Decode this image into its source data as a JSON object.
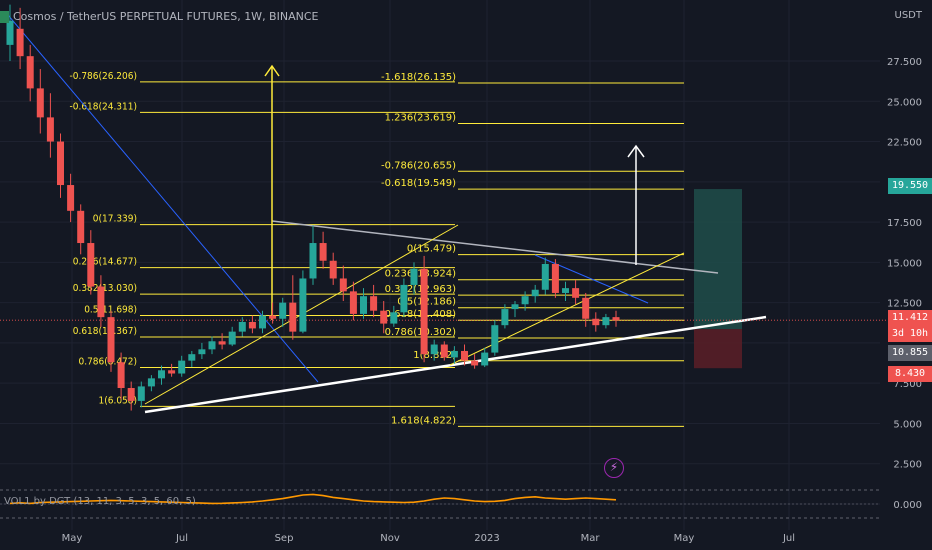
{
  "header": {
    "title": "Cosmos / TetherUS PERPETUAL FUTURES, 1W, BINANCE",
    "currency": "USDT"
  },
  "indicator": {
    "label": "VOL1 by DGT (13, 11, 3, 5, 3, 5, 60, 5)"
  },
  "colors": {
    "background": "#141823",
    "up_candle": "#26a69a",
    "down_candle": "#ef5350",
    "fib_line": "#ffeb3b",
    "trend_white": "#ffffff",
    "trend_blue": "#2962ff",
    "target_zone": "#1e4d4a",
    "stop_zone": "#5a1f27"
  },
  "price_axis": {
    "ticks": [
      "27.500",
      "25.000",
      "22.500",
      "17.500",
      "15.000",
      "12.500",
      "7.500",
      "5.000",
      "2.500",
      "0.000"
    ]
  },
  "badges": {
    "tp": "19.550",
    "last": "11.412",
    "countdown": "3d 10h",
    "entry": "10.855",
    "sl": "8.430"
  },
  "time_axis": {
    "labels": [
      "May",
      "Jul",
      "Sep",
      "Nov",
      "2023",
      "Mar",
      "May",
      "Jul"
    ]
  },
  "fib_left": [
    "-0.786(26.206)",
    "-0.618(24.311)",
    "0(17.339)",
    "0.236(14.677)",
    "0.382(13.030)",
    "0.5(11.698)",
    "0.618(10.367)",
    "0.786(8.472)",
    "1(6.058)"
  ],
  "fib_right": [
    "-1.618(26.135)",
    "1.236(23.619)",
    "-0.786(20.655)",
    "-0.618(19.549)",
    "0(15.479)",
    "0.236(13.924)",
    "0.382(12.963)",
    "0.5(12.186)",
    "0.618(11.408)",
    "0.786(10.302)",
    "1(8.892)",
    "1.618(4.822)"
  ],
  "chart_data": {
    "type": "candlestick",
    "symbol": "Cosmos / TetherUS PERPETUAL FUTURES",
    "interval": "1W",
    "exchange": "BINANCE",
    "ylim": [
      0,
      30
    ],
    "last_price": 11.412,
    "candles": [
      {
        "o": 28.5,
        "h": 31.0,
        "l": 27.5,
        "c": 30.0
      },
      {
        "o": 29.5,
        "h": 30.8,
        "l": 27.0,
        "c": 27.8
      },
      {
        "o": 27.8,
        "h": 28.5,
        "l": 25.0,
        "c": 25.8
      },
      {
        "o": 25.8,
        "h": 27.0,
        "l": 23.0,
        "c": 24.0
      },
      {
        "o": 24.0,
        "h": 25.5,
        "l": 21.5,
        "c": 22.5
      },
      {
        "o": 22.5,
        "h": 23.0,
        "l": 19.0,
        "c": 19.8
      },
      {
        "o": 19.8,
        "h": 20.5,
        "l": 17.5,
        "c": 18.2
      },
      {
        "o": 18.2,
        "h": 18.6,
        "l": 15.5,
        "c": 16.2
      },
      {
        "o": 16.2,
        "h": 17.0,
        "l": 13.0,
        "c": 13.5
      },
      {
        "o": 13.5,
        "h": 14.2,
        "l": 11.0,
        "c": 11.6
      },
      {
        "o": 11.6,
        "h": 12.0,
        "l": 8.2,
        "c": 8.8
      },
      {
        "o": 8.8,
        "h": 9.4,
        "l": 6.5,
        "c": 7.2
      },
      {
        "o": 7.2,
        "h": 7.6,
        "l": 5.8,
        "c": 6.4
      },
      {
        "o": 6.4,
        "h": 7.6,
        "l": 6.0,
        "c": 7.3
      },
      {
        "o": 7.3,
        "h": 8.0,
        "l": 7.0,
        "c": 7.8
      },
      {
        "o": 7.8,
        "h": 8.6,
        "l": 7.4,
        "c": 8.3
      },
      {
        "o": 8.3,
        "h": 8.7,
        "l": 7.9,
        "c": 8.1
      },
      {
        "o": 8.1,
        "h": 9.2,
        "l": 7.9,
        "c": 8.9
      },
      {
        "o": 8.9,
        "h": 9.5,
        "l": 8.5,
        "c": 9.3
      },
      {
        "o": 9.3,
        "h": 10.0,
        "l": 9.0,
        "c": 9.6
      },
      {
        "o": 9.6,
        "h": 10.4,
        "l": 9.3,
        "c": 10.1
      },
      {
        "o": 10.1,
        "h": 10.6,
        "l": 9.6,
        "c": 9.9
      },
      {
        "o": 9.9,
        "h": 11.0,
        "l": 9.8,
        "c": 10.7
      },
      {
        "o": 10.7,
        "h": 11.6,
        "l": 10.4,
        "c": 11.3
      },
      {
        "o": 11.3,
        "h": 11.7,
        "l": 10.6,
        "c": 10.9
      },
      {
        "o": 10.9,
        "h": 12.0,
        "l": 10.6,
        "c": 11.7
      },
      {
        "o": 11.7,
        "h": 12.5,
        "l": 11.2,
        "c": 11.5
      },
      {
        "o": 11.5,
        "h": 12.8,
        "l": 11.0,
        "c": 12.5
      },
      {
        "o": 12.5,
        "h": 14.2,
        "l": 10.2,
        "c": 10.7
      },
      {
        "o": 10.7,
        "h": 14.5,
        "l": 10.6,
        "c": 14.0
      },
      {
        "o": 14.0,
        "h": 17.3,
        "l": 13.6,
        "c": 16.2
      },
      {
        "o": 16.2,
        "h": 16.9,
        "l": 14.6,
        "c": 15.1
      },
      {
        "o": 15.1,
        "h": 15.6,
        "l": 13.6,
        "c": 14.0
      },
      {
        "o": 14.0,
        "h": 14.8,
        "l": 12.6,
        "c": 13.2
      },
      {
        "o": 13.2,
        "h": 13.8,
        "l": 11.4,
        "c": 11.8
      },
      {
        "o": 11.8,
        "h": 13.4,
        "l": 11.5,
        "c": 12.9
      },
      {
        "o": 12.9,
        "h": 13.6,
        "l": 11.6,
        "c": 12.0
      },
      {
        "o": 12.0,
        "h": 12.6,
        "l": 10.6,
        "c": 11.2
      },
      {
        "o": 11.2,
        "h": 12.3,
        "l": 11.0,
        "c": 11.9
      },
      {
        "o": 11.9,
        "h": 14.0,
        "l": 11.6,
        "c": 13.6
      },
      {
        "o": 13.6,
        "h": 15.0,
        "l": 13.0,
        "c": 14.6
      },
      {
        "o": 14.6,
        "h": 15.4,
        "l": 8.8,
        "c": 9.3
      },
      {
        "o": 9.3,
        "h": 10.2,
        "l": 8.9,
        "c": 9.9
      },
      {
        "o": 9.9,
        "h": 10.1,
        "l": 8.9,
        "c": 9.1
      },
      {
        "o": 9.1,
        "h": 9.8,
        "l": 8.7,
        "c": 9.5
      },
      {
        "o": 9.5,
        "h": 9.9,
        "l": 8.6,
        "c": 8.9
      },
      {
        "o": 8.9,
        "h": 9.3,
        "l": 8.4,
        "c": 8.6
      },
      {
        "o": 8.6,
        "h": 9.7,
        "l": 8.5,
        "c": 9.4
      },
      {
        "o": 9.4,
        "h": 11.4,
        "l": 9.2,
        "c": 11.1
      },
      {
        "o": 11.1,
        "h": 12.4,
        "l": 10.9,
        "c": 12.1
      },
      {
        "o": 12.1,
        "h": 12.6,
        "l": 11.6,
        "c": 12.4
      },
      {
        "o": 12.4,
        "h": 13.2,
        "l": 12.0,
        "c": 12.9
      },
      {
        "o": 12.9,
        "h": 13.6,
        "l": 12.5,
        "c": 13.3
      },
      {
        "o": 13.3,
        "h": 15.3,
        "l": 13.0,
        "c": 14.9
      },
      {
        "o": 14.9,
        "h": 15.2,
        "l": 12.8,
        "c": 13.1
      },
      {
        "o": 13.1,
        "h": 13.8,
        "l": 12.6,
        "c": 13.4
      },
      {
        "o": 13.4,
        "h": 13.9,
        "l": 12.4,
        "c": 12.8
      },
      {
        "o": 12.8,
        "h": 13.1,
        "l": 11.0,
        "c": 11.5
      },
      {
        "o": 11.5,
        "h": 11.9,
        "l": 10.7,
        "c": 11.1
      },
      {
        "o": 11.1,
        "h": 11.8,
        "l": 10.9,
        "c": 11.6
      },
      {
        "o": 11.6,
        "h": 12.0,
        "l": 11.0,
        "c": 11.4
      }
    ],
    "fib_levels_left": [
      26.206,
      24.311,
      17.339,
      14.677,
      13.03,
      11.698,
      10.367,
      8.472,
      6.058
    ],
    "fib_levels_right": [
      26.135,
      23.619,
      20.655,
      19.549,
      15.479,
      13.924,
      12.963,
      12.186,
      11.408,
      10.302,
      8.892,
      4.822
    ],
    "position": {
      "entry": 10.855,
      "take_profit": 19.55,
      "stop_loss": 8.43
    },
    "volume_oscillator": [
      0.1,
      0.2,
      0.1,
      0.25,
      0.3,
      0.35,
      0.4,
      0.45,
      0.5,
      0.55,
      0.6,
      0.55,
      0.5,
      0.45,
      0.4,
      0.35,
      0.3,
      0.25,
      0.2,
      0.15,
      0.1,
      0.12,
      0.18,
      0.25,
      0.35,
      0.5,
      0.7,
      0.9,
      1.2,
      1.5,
      1.6,
      1.4,
      1.1,
      0.9,
      0.7,
      0.5,
      0.4,
      0.35,
      0.3,
      0.25,
      0.3,
      0.5,
      0.8,
      1.0,
      0.9,
      0.7,
      0.5,
      0.4,
      0.45,
      0.6,
      0.9,
      1.1,
      1.2,
      1.0,
      0.9,
      0.8,
      0.9,
      1.0,
      0.9,
      0.8,
      0.7
    ]
  }
}
